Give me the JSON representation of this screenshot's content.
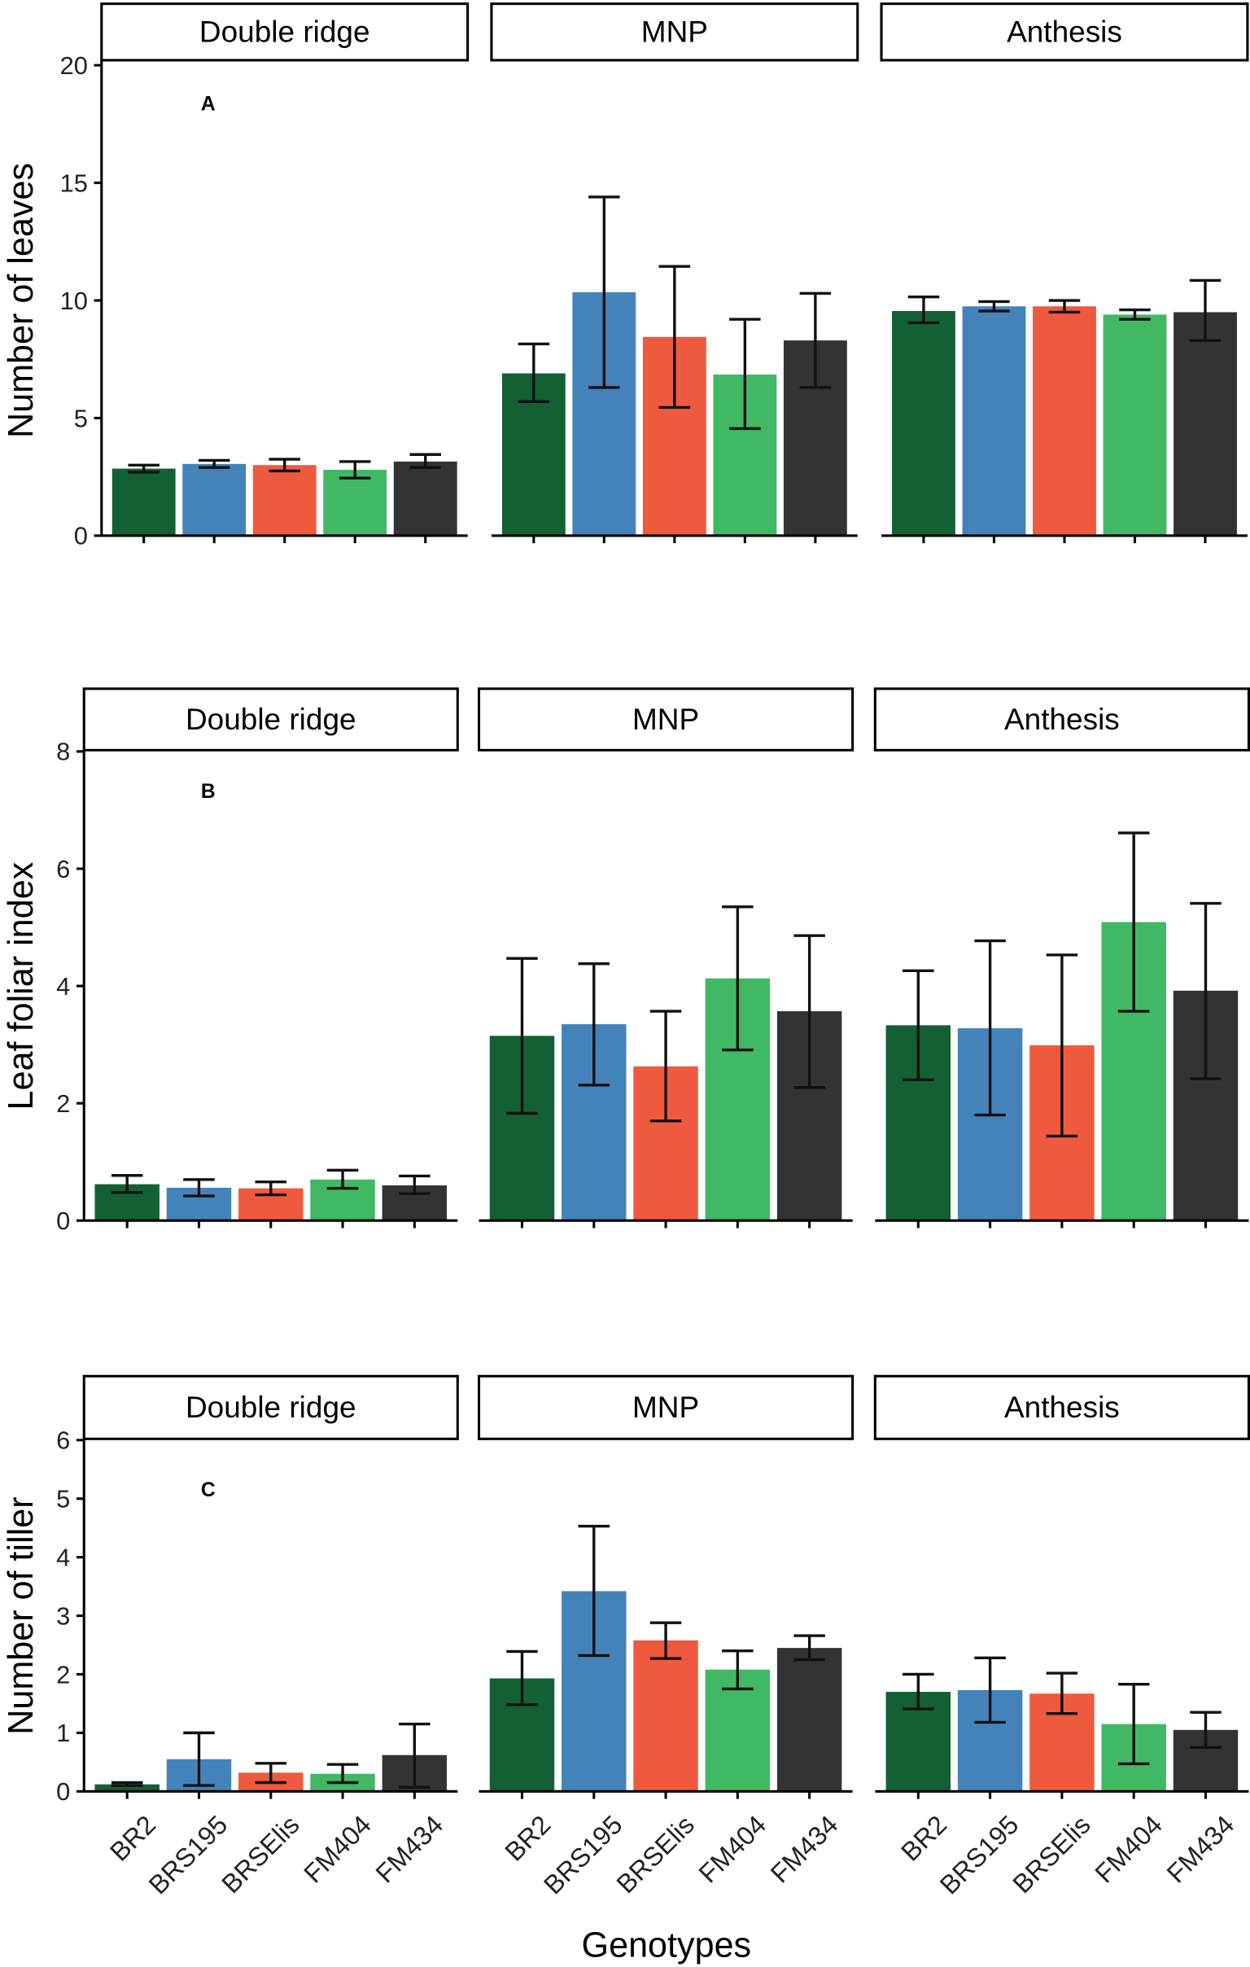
{
  "chart_data": [
    {
      "type": "bar",
      "panel_label": "A",
      "title": "",
      "xlabel": "",
      "ylabel": "Number of leaves",
      "ylim": [
        0,
        20
      ],
      "yticks": [
        0,
        5,
        10,
        15,
        20
      ],
      "grid": false,
      "x_tick_labels_visible": false,
      "categories": [
        "BR2",
        "BRS195",
        "BRSElis",
        "FM404",
        "FM434"
      ],
      "colors": [
        "#136034",
        "#4483BA",
        "#EF5A3E",
        "#41B864",
        "#333333"
      ],
      "facets": [
        {
          "title": "Double ridge",
          "values": [
            2.85,
            3.05,
            3.0,
            2.8,
            3.15
          ],
          "error_low": [
            2.7,
            2.9,
            2.75,
            2.45,
            2.9
          ],
          "error_high": [
            3.0,
            3.2,
            3.25,
            3.15,
            3.45
          ]
        },
        {
          "title": "MNP",
          "values": [
            6.9,
            10.35,
            8.45,
            6.85,
            8.3
          ],
          "error_low": [
            5.7,
            6.3,
            5.45,
            4.55,
            6.3
          ],
          "error_high": [
            8.15,
            14.4,
            11.45,
            9.2,
            10.3
          ]
        },
        {
          "title": "Anthesis",
          "values": [
            9.55,
            9.75,
            9.75,
            9.4,
            9.5
          ],
          "error_low": [
            9.05,
            9.55,
            9.5,
            9.2,
            8.3
          ],
          "error_high": [
            10.15,
            9.95,
            10.0,
            9.6,
            10.85
          ]
        }
      ]
    },
    {
      "type": "bar",
      "panel_label": "B",
      "title": "",
      "xlabel": "",
      "ylabel": "Leaf foliar index",
      "ylim": [
        0,
        8
      ],
      "yticks": [
        0,
        2,
        4,
        6,
        8
      ],
      "grid": false,
      "x_tick_labels_visible": false,
      "categories": [
        "BR2",
        "BRS195",
        "BRSElis",
        "FM404",
        "FM434"
      ],
      "colors": [
        "#136034",
        "#4483BA",
        "#EF5A3E",
        "#41B864",
        "#333333"
      ],
      "facets": [
        {
          "title": "Double ridge",
          "values": [
            0.62,
            0.56,
            0.55,
            0.7,
            0.6
          ],
          "error_low": [
            0.48,
            0.42,
            0.44,
            0.55,
            0.46
          ],
          "error_high": [
            0.77,
            0.7,
            0.66,
            0.86,
            0.76
          ]
        },
        {
          "title": "MNP",
          "values": [
            3.15,
            3.35,
            2.63,
            4.13,
            3.57
          ],
          "error_low": [
            1.83,
            2.31,
            1.7,
            2.91,
            2.27
          ],
          "error_high": [
            4.47,
            4.38,
            3.57,
            5.35,
            4.86
          ]
        },
        {
          "title": "Anthesis",
          "values": [
            3.33,
            3.28,
            2.99,
            5.09,
            3.92
          ],
          "error_low": [
            2.4,
            1.8,
            1.44,
            3.57,
            2.42
          ],
          "error_high": [
            4.26,
            4.77,
            4.53,
            6.61,
            5.41
          ]
        }
      ]
    },
    {
      "type": "bar",
      "panel_label": "C",
      "title": "",
      "xlabel": "Genotypes",
      "ylabel": "Number of tiller",
      "ylim": [
        0,
        6
      ],
      "yticks": [
        0,
        1,
        2,
        3,
        4,
        5,
        6
      ],
      "grid": false,
      "x_tick_labels_visible": true,
      "categories": [
        "BR2",
        "BRS195",
        "BRSElis",
        "FM404",
        "FM434"
      ],
      "colors": [
        "#136034",
        "#4483BA",
        "#EF5A3E",
        "#41B864",
        "#333333"
      ],
      "facets": [
        {
          "title": "Double ridge",
          "values": [
            0.12,
            0.55,
            0.32,
            0.3,
            0.62
          ],
          "error_low": [
            0.1,
            0.1,
            0.15,
            0.15,
            0.07
          ],
          "error_high": [
            0.15,
            1.0,
            0.48,
            0.46,
            1.15
          ]
        },
        {
          "title": "MNP",
          "values": [
            1.93,
            3.42,
            2.58,
            2.08,
            2.45
          ],
          "error_low": [
            1.48,
            2.32,
            2.27,
            1.75,
            2.25
          ],
          "error_high": [
            2.39,
            4.53,
            2.88,
            2.4,
            2.66
          ]
        },
        {
          "title": "Anthesis",
          "values": [
            1.7,
            1.73,
            1.67,
            1.15,
            1.05
          ],
          "error_low": [
            1.41,
            1.18,
            1.33,
            0.47,
            0.75
          ],
          "error_high": [
            2.0,
            2.28,
            2.02,
            1.83,
            1.35
          ]
        }
      ]
    }
  ]
}
